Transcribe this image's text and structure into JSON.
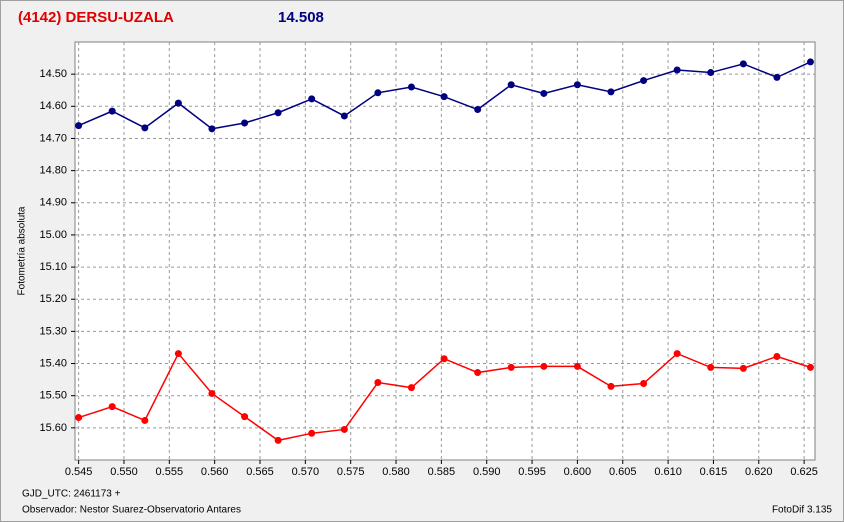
{
  "chart_data": {
    "type": "line",
    "title": "(4142) DERSU-UZALA",
    "subtitle": "14.508",
    "y_label": "Fotometría absoluta",
    "footer_left": "GJD_UTC: 2461173 +",
    "footer_observer": "Observador: Nestor Suarez-Observatorio Antares",
    "footer_right": "FotoDif 3.135",
    "x": [
      0.545,
      0.5487,
      0.5523,
      0.556,
      0.5597,
      0.5633,
      0.567,
      0.5707,
      0.5743,
      0.578,
      0.5817,
      0.5853,
      0.589,
      0.5927,
      0.5963,
      0.6,
      0.6037,
      0.6073,
      0.611,
      0.6147,
      0.6183,
      0.622,
      0.6257
    ],
    "series": [
      {
        "color": "#000080",
        "values": [
          14.66,
          14.615,
          14.667,
          14.59,
          14.67,
          14.652,
          14.62,
          14.577,
          14.63,
          14.558,
          14.54,
          14.57,
          14.61,
          14.533,
          14.56,
          14.533,
          14.555,
          14.52,
          14.487,
          14.495,
          14.468,
          14.51,
          14.462
        ]
      },
      {
        "color": "#ff0000",
        "values": [
          15.568,
          15.534,
          15.577,
          15.369,
          15.493,
          15.565,
          15.639,
          15.617,
          15.605,
          15.459,
          15.475,
          15.385,
          15.428,
          15.412,
          15.409,
          15.409,
          15.471,
          15.462,
          15.369,
          15.412,
          15.415,
          15.378,
          15.412
        ]
      }
    ],
    "xlim": [
      0.5446,
      0.6262
    ],
    "ylim": [
      15.7,
      14.4
    ],
    "xticks": [
      0.545,
      {
        "value": 0.55,
        "label": "0.550"
      },
      0.555,
      {
        "value": 0.56,
        "label": "0.560"
      },
      0.565,
      {
        "value": 0.57,
        "label": "0.570"
      },
      0.575,
      {
        "value": 0.58,
        "label": "0.580"
      },
      0.585,
      {
        "value": 0.59,
        "label": "0.590"
      },
      0.595,
      {
        "value": 0.6,
        "label": "0.600"
      },
      0.605,
      {
        "value": 0.61,
        "label": "0.610"
      },
      0.615,
      {
        "value": 0.62,
        "label": "0.620"
      },
      0.625
    ],
    "yticks": [
      {
        "value": 14.5,
        "label": "14.50"
      },
      {
        "value": 14.6,
        "label": "14.60"
      },
      {
        "value": 14.7,
        "label": "14.70"
      },
      {
        "value": 14.8,
        "label": "14.80"
      },
      {
        "value": 14.9,
        "label": "14.90"
      },
      {
        "value": 15.0,
        "label": "15.00"
      },
      {
        "value": 15.1,
        "label": "15.10"
      },
      {
        "value": 15.2,
        "label": "15.20"
      },
      {
        "value": 15.3,
        "label": "15.30"
      },
      {
        "value": 15.4,
        "label": "15.40"
      },
      {
        "value": 15.5,
        "label": "15.50"
      },
      {
        "value": 15.6,
        "label": "15.60"
      }
    ],
    "grid": true
  }
}
